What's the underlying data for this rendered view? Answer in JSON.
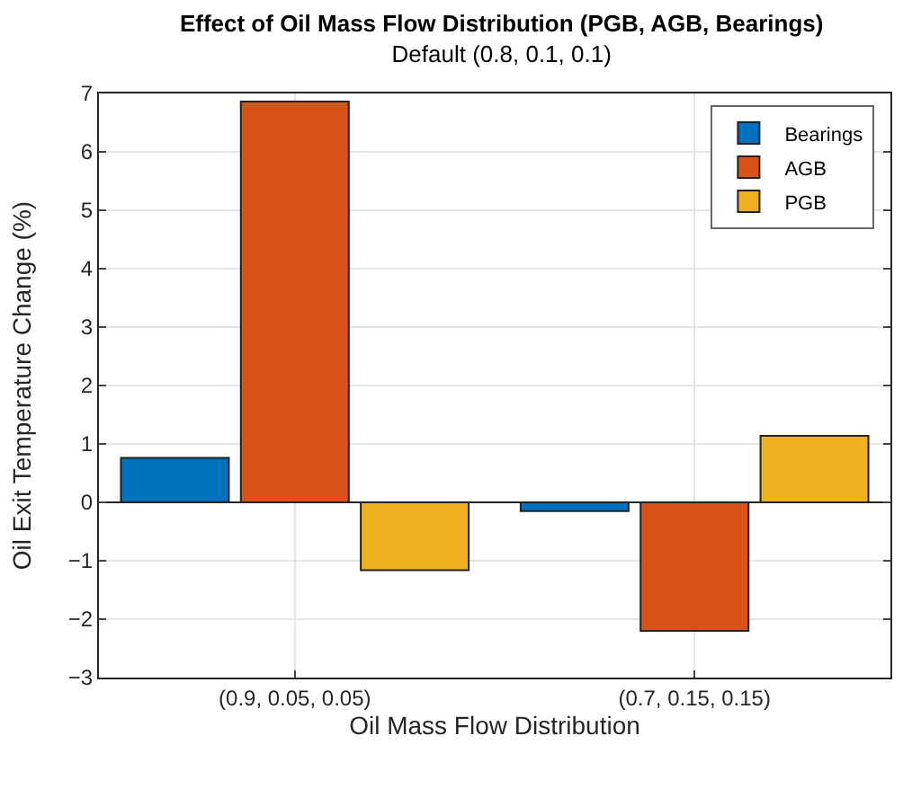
{
  "chart_data": {
    "type": "bar",
    "title": "Effect of Oil Mass Flow Distribution (PGB, AGB, Bearings)",
    "subtitle": "Default (0.8, 0.1, 0.1)",
    "xlabel": "Oil Mass Flow Distribution",
    "ylabel": "Oil Exit Temperature Change (%)",
    "categories": [
      "(0.9, 0.05, 0.05)",
      "(0.7, 0.15, 0.15)"
    ],
    "series": [
      {
        "name": "Bearings",
        "color": "#0072bd",
        "values": [
          0.76,
          -0.15
        ]
      },
      {
        "name": "AGB",
        "color": "#d95319",
        "values": [
          6.86,
          -2.2
        ]
      },
      {
        "name": "PGB",
        "color": "#edb120",
        "values": [
          -1.16,
          1.14
        ]
      }
    ],
    "ylim": [
      -3,
      7
    ],
    "yticks": [
      -3,
      -2,
      -1,
      0,
      1,
      2,
      3,
      4,
      5,
      6,
      7
    ],
    "grid": true,
    "legend": "top right"
  }
}
